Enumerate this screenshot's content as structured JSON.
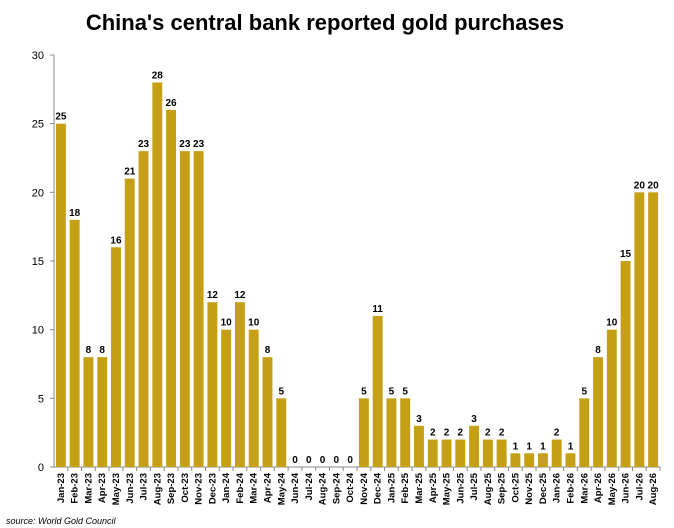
{
  "chart_data": {
    "type": "bar",
    "title": "China's central bank reported gold purchases",
    "xlabel": "",
    "ylabel": "",
    "ylim": [
      0,
      30
    ],
    "yticks": [
      0,
      5,
      10,
      15,
      20,
      25,
      30
    ],
    "grid": false,
    "legend": "none",
    "bar_color": "#C5A017",
    "categories": [
      "Jan-23",
      "Feb-23",
      "Mar-23",
      "Apr-23",
      "May-23",
      "Jun-23",
      "Jul-23",
      "Aug-23",
      "Sep-23",
      "Oct-23",
      "Nov-23",
      "Dec-23",
      "Jan-24",
      "Feb-24",
      "Mar-24",
      "Apr-24",
      "May-24",
      "Jun-24",
      "Jul-24",
      "Aug-24",
      "Sep-24",
      "Oct-24",
      "Nov-24",
      "Dec-24",
      "Jan-25",
      "Feb-25",
      "Mar-25",
      "Apr-25",
      "May-25",
      "Jun-25",
      "Jul-25",
      "Aug-25",
      "Sep-25",
      "Oct-25",
      "Nov-25",
      "Dec-25",
      "Jan-26",
      "Feb-26",
      "Mar-26",
      "Apr-26",
      "May-26",
      "Jun-26",
      "Jul-26",
      "Aug-26"
    ],
    "values": [
      25,
      18,
      8,
      8,
      16,
      21,
      23,
      28,
      26,
      23,
      23,
      12,
      10,
      12,
      10,
      8,
      5,
      0,
      0,
      0,
      0,
      0,
      5,
      11,
      5,
      5,
      3,
      2,
      2,
      2,
      3,
      2,
      2,
      1,
      1,
      1,
      2,
      1,
      5,
      8,
      10,
      15,
      20,
      20
    ],
    "source": "source: World Gold Council"
  }
}
